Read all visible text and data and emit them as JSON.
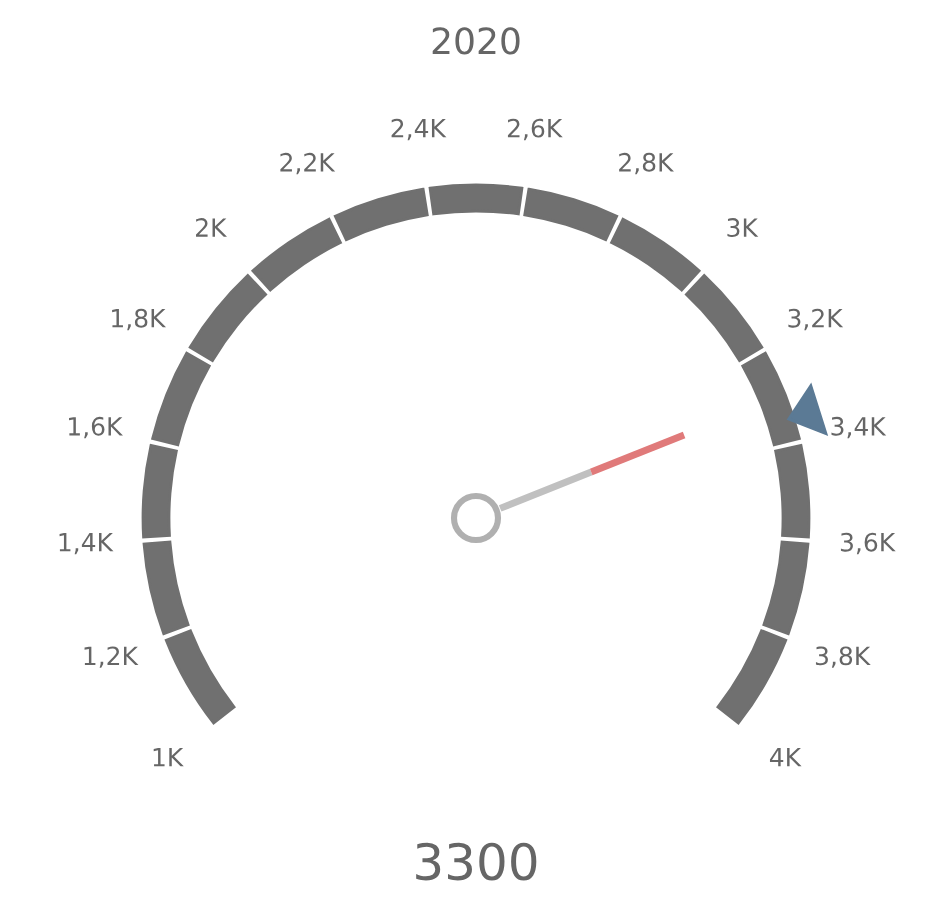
{
  "chart_data": {
    "type": "other",
    "title": "2020",
    "values": [
      3300
    ],
    "value_labels": [
      "3300"
    ],
    "annotations": [
      "1K",
      "1,2K",
      "1,4K",
      "1,6K",
      "1,8K",
      "2K",
      "2,2K",
      "2,4K",
      "2,6K",
      "2,8K",
      "3K",
      "3,2K",
      "3,4K",
      "3,6K",
      "3,8K",
      "4K"
    ]
  }
}
